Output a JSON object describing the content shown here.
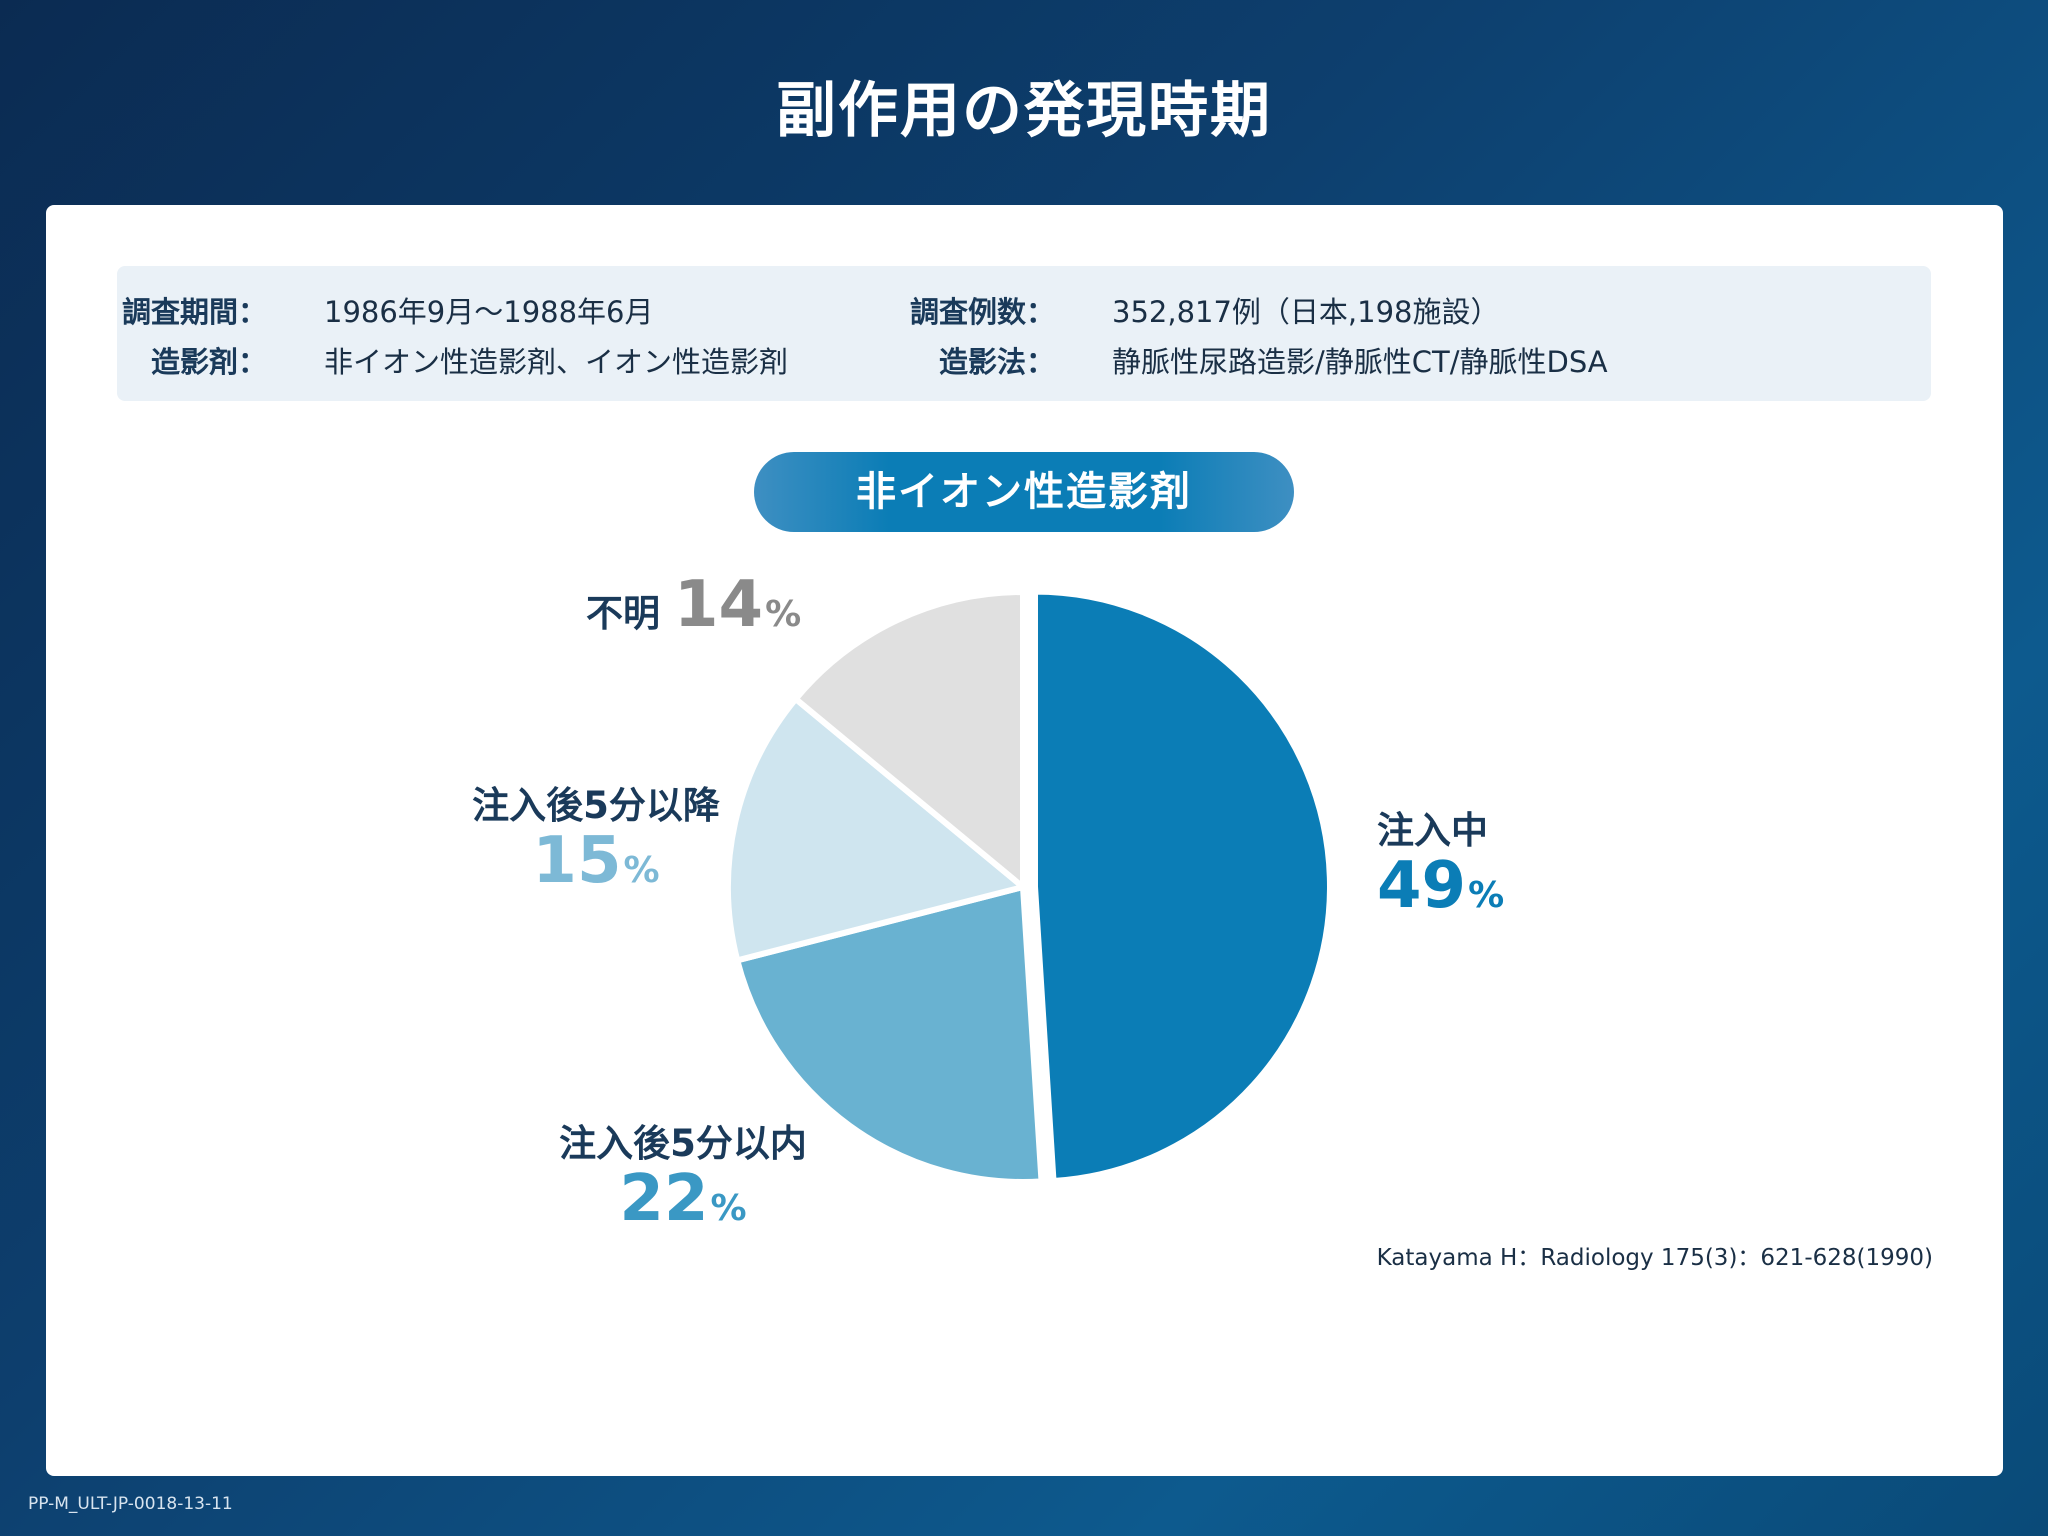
{
  "title": "副作用の発現時期",
  "info": {
    "period": {
      "label": "調査期間",
      "value": "1986年9月〜1988年6月"
    },
    "cases": {
      "label": "調査例数",
      "value": "352,817例（日本,198施設）"
    },
    "agent": {
      "label": "造影剤",
      "value": "非イオン性造影剤、イオン性造影剤"
    },
    "method": {
      "label": "造影法",
      "value": "静脈性尿路造影/静脈性CT/静脈性DSA"
    }
  },
  "pill_label": "非イオン性造影剤",
  "chart_data": {
    "type": "pie",
    "title": "非イオン性造影剤",
    "unit": "%",
    "slices": [
      {
        "label": "注入中",
        "value": 49,
        "color": "#0b7db6",
        "text_color": "#0b7db6"
      },
      {
        "label": "注入後5分以内",
        "value": 22,
        "color": "#69b2d1",
        "text_color": "#3a98c4"
      },
      {
        "label": "注入後5分以降",
        "value": 15,
        "color": "#cfe5ef",
        "text_color": "#7db9d6"
      },
      {
        "label": "不明",
        "value": 14,
        "color": "#e0e0e0",
        "text_color": "#8a8a8a"
      }
    ]
  },
  "citation": "Katayama H：Radiology 175(3)：621-628(1990)",
  "footer_code": "PP-M_ULT-JP-0018-13-11"
}
